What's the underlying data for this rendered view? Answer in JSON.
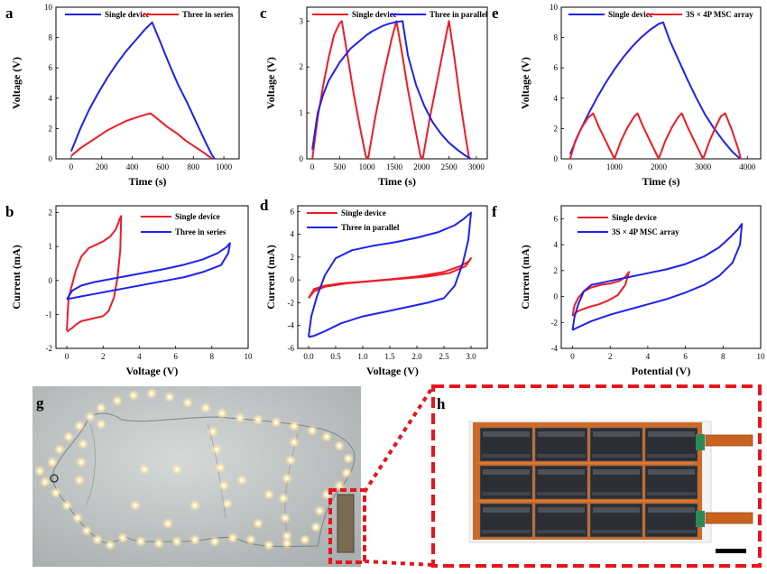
{
  "panel_labels": {
    "a": "a",
    "b": "b",
    "c": "c",
    "d": "d",
    "e": "e",
    "f": "f",
    "g": "g",
    "h": "h"
  },
  "colors": {
    "red": "#ee1c25",
    "blue": "#1e22ee",
    "dashed_box": "#e8141c",
    "grey_bg": "#b8bcbe",
    "device_orange": "#d2691e"
  },
  "chart_data": [
    {
      "id": "a",
      "type": "line",
      "xlabel": "Time (s)",
      "ylabel": "Voltage (V)",
      "xlim": [
        -100,
        1100
      ],
      "ylim": [
        0,
        10
      ],
      "xticks": [
        0,
        200,
        400,
        600,
        800,
        1000
      ],
      "yticks": [
        0,
        2,
        4,
        6,
        8,
        10
      ],
      "legend": "top",
      "series": [
        {
          "name": "Single device",
          "color": "#1e22ee",
          "x": [
            0,
            60,
            120,
            180,
            240,
            300,
            360,
            420,
            480,
            530,
            580,
            640,
            700,
            760,
            820,
            880,
            920,
            940
          ],
          "y": [
            0.5,
            2.0,
            3.3,
            4.4,
            5.4,
            6.3,
            7.1,
            7.8,
            8.5,
            9.0,
            7.8,
            6.3,
            4.9,
            3.7,
            2.4,
            1.1,
            0.3,
            0.0
          ]
        },
        {
          "name": "Three in series",
          "color": "#ee1c25",
          "x": [
            0,
            60,
            120,
            180,
            240,
            300,
            360,
            420,
            480,
            520,
            570,
            630,
            690,
            750,
            810,
            870,
            910,
            925
          ],
          "y": [
            0.2,
            0.7,
            1.1,
            1.5,
            1.9,
            2.2,
            2.5,
            2.7,
            2.9,
            3.0,
            2.6,
            2.1,
            1.7,
            1.2,
            0.8,
            0.4,
            0.1,
            0.0
          ]
        }
      ]
    },
    {
      "id": "c",
      "type": "line",
      "xlabel": "Time (s)",
      "ylabel": "Voltage (V)",
      "xlim": [
        -100,
        3200
      ],
      "ylim": [
        0,
        3.3
      ],
      "xticks": [
        0,
        500,
        1000,
        1500,
        2000,
        2500,
        3000
      ],
      "yticks": [
        0,
        1,
        2,
        3
      ],
      "legend": "top",
      "series": [
        {
          "name": "Single device",
          "color": "#ee1c25",
          "x": [
            0,
            100,
            200,
            300,
            400,
            500,
            540,
            650,
            760,
            870,
            980,
            1020,
            1150,
            1300,
            1450,
            1540,
            1640,
            1750,
            1860,
            1980,
            2020,
            2150,
            2300,
            2450,
            2500,
            2600,
            2700,
            2800,
            2870
          ],
          "y": [
            0.0,
            0.9,
            1.6,
            2.2,
            2.7,
            2.95,
            3.0,
            2.2,
            1.4,
            0.7,
            0.05,
            0.0,
            0.9,
            1.8,
            2.6,
            3.0,
            2.3,
            1.5,
            0.8,
            0.05,
            0.0,
            0.9,
            1.8,
            2.7,
            3.0,
            2.2,
            1.3,
            0.5,
            0.0
          ]
        },
        {
          "name": "Three in parallel",
          "color": "#1e22ee",
          "x": [
            0,
            100,
            200,
            300,
            400,
            500,
            600,
            700,
            800,
            900,
            1000,
            1100,
            1200,
            1300,
            1400,
            1500,
            1600,
            1650,
            1750,
            1900,
            2050,
            2200,
            2350,
            2500,
            2650,
            2800,
            2900
          ],
          "y": [
            0.2,
            1.0,
            1.4,
            1.7,
            1.9,
            2.1,
            2.25,
            2.4,
            2.5,
            2.6,
            2.7,
            2.78,
            2.84,
            2.9,
            2.94,
            2.97,
            2.99,
            3.0,
            2.25,
            1.6,
            1.15,
            0.8,
            0.55,
            0.35,
            0.2,
            0.07,
            0.0
          ]
        }
      ]
    },
    {
      "id": "e",
      "type": "line",
      "xlabel": "Time (s)",
      "ylabel": "Voltage (V)",
      "xlim": [
        -200,
        4300
      ],
      "ylim": [
        0,
        10
      ],
      "xticks": [
        0,
        1000,
        2000,
        3000,
        4000
      ],
      "yticks": [
        0,
        2,
        4,
        6,
        8,
        10
      ],
      "legend": "top",
      "series": [
        {
          "name": "Single device",
          "color": "#1e22ee",
          "x": [
            0,
            200,
            400,
            600,
            800,
            1000,
            1200,
            1400,
            1600,
            1800,
            2000,
            2100,
            2250,
            2450,
            2650,
            2850,
            3050,
            3250,
            3450,
            3650,
            3800,
            3850
          ],
          "y": [
            0.3,
            1.7,
            2.9,
            4.0,
            5.0,
            5.9,
            6.7,
            7.4,
            8.0,
            8.5,
            8.9,
            9.0,
            7.8,
            6.5,
            5.2,
            4.0,
            2.9,
            2.0,
            1.2,
            0.5,
            0.1,
            0.0
          ]
        },
        {
          "name": "3S × 4P MSC array",
          "color": "#ee1c25",
          "x": [
            0,
            120,
            250,
            400,
            520,
            650,
            800,
            950,
            1000,
            1150,
            1300,
            1450,
            1520,
            1650,
            1800,
            1950,
            2000,
            2150,
            2300,
            2450,
            2520,
            2650,
            2800,
            2950,
            3000,
            3150,
            3300,
            3400,
            3500,
            3650,
            3800,
            3850
          ],
          "y": [
            0.0,
            1.2,
            2.0,
            2.7,
            3.0,
            2.1,
            1.2,
            0.3,
            0.0,
            1.2,
            2.1,
            2.8,
            3.0,
            2.1,
            1.2,
            0.3,
            0.0,
            1.2,
            2.1,
            2.8,
            3.0,
            2.1,
            1.2,
            0.3,
            0.0,
            1.2,
            2.2,
            2.8,
            3.0,
            1.9,
            0.6,
            0.0
          ]
        }
      ]
    },
    {
      "id": "b",
      "type": "line",
      "xlabel": "Voltage (V)",
      "ylabel": "Current (mA)",
      "xlim": [
        -0.6,
        10
      ],
      "ylim": [
        -2,
        2.2
      ],
      "xticks": [
        0,
        2,
        4,
        6,
        8,
        10
      ],
      "yticks": [
        -2,
        -1,
        0,
        1,
        2
      ],
      "legend": "top-right",
      "series": [
        {
          "name": "Single device",
          "color": "#ee1c25",
          "x": [
            0.1,
            0.3,
            0.5,
            0.8,
            1.2,
            1.6,
            2.0,
            2.4,
            2.7,
            2.85,
            2.92,
            3.0,
            2.95,
            2.8,
            2.6,
            2.3,
            2.0,
            1.6,
            1.2,
            0.8,
            0.5,
            0.3,
            0.15,
            0.05,
            0.0,
            0.05,
            0.1
          ],
          "y": [
            -0.5,
            -0.1,
            0.3,
            0.7,
            0.95,
            1.05,
            1.15,
            1.3,
            1.5,
            1.7,
            1.82,
            1.9,
            0.9,
            0.1,
            -0.5,
            -0.9,
            -1.05,
            -1.1,
            -1.15,
            -1.2,
            -1.3,
            -1.4,
            -1.45,
            -1.5,
            -1.45,
            -0.9,
            -0.5
          ]
        },
        {
          "name": "Three in series",
          "color": "#1e22ee",
          "x": [
            0.0,
            0.3,
            0.8,
            1.5,
            2.5,
            3.5,
            4.5,
            5.5,
            6.5,
            7.5,
            8.3,
            8.8,
            9.0,
            8.9,
            8.5,
            7.5,
            6.5,
            5.5,
            4.5,
            3.5,
            2.5,
            1.5,
            0.8,
            0.3,
            0.0
          ],
          "y": [
            -0.55,
            -0.3,
            -0.15,
            -0.05,
            0.05,
            0.15,
            0.25,
            0.35,
            0.47,
            0.62,
            0.8,
            0.98,
            1.1,
            0.8,
            0.45,
            0.25,
            0.1,
            0.0,
            -0.1,
            -0.2,
            -0.3,
            -0.4,
            -0.47,
            -0.52,
            -0.55
          ]
        }
      ]
    },
    {
      "id": "d",
      "type": "line",
      "xlabel": "Voltage (V)",
      "ylabel": "Current (mA)",
      "xlim": [
        -0.2,
        3.3
      ],
      "ylim": [
        -6,
        6.5
      ],
      "xticks": [
        0.0,
        0.5,
        1.0,
        1.5,
        2.0,
        2.5,
        3.0
      ],
      "yticks": [
        -6,
        -4,
        -2,
        0,
        2,
        4,
        6
      ],
      "legend": "top-left",
      "series": [
        {
          "name": "Single device",
          "color": "#ee1c25",
          "x": [
            0.0,
            0.1,
            0.3,
            0.6,
            1.0,
            1.5,
            2.0,
            2.5,
            2.8,
            2.95,
            3.0,
            2.9,
            2.6,
            2.2,
            1.7,
            1.2,
            0.7,
            0.3,
            0.1,
            0.0
          ],
          "y": [
            -1.6,
            -0.8,
            -0.5,
            -0.3,
            -0.15,
            0.05,
            0.3,
            0.7,
            1.2,
            1.6,
            1.9,
            1.2,
            0.6,
            0.3,
            0.1,
            -0.1,
            -0.3,
            -0.6,
            -1.0,
            -1.6
          ]
        },
        {
          "name": "Three in parallel",
          "color": "#1e22ee",
          "x": [
            0.0,
            0.05,
            0.15,
            0.3,
            0.5,
            0.8,
            1.2,
            1.6,
            2.0,
            2.4,
            2.7,
            2.85,
            2.95,
            3.0,
            2.95,
            2.85,
            2.7,
            2.5,
            2.2,
            1.8,
            1.4,
            1.0,
            0.6,
            0.3,
            0.1,
            0.0
          ],
          "y": [
            -5.0,
            -3.2,
            -1.5,
            0.4,
            1.9,
            2.6,
            3.0,
            3.3,
            3.7,
            4.2,
            4.8,
            5.3,
            5.7,
            5.9,
            3.5,
            1.5,
            -0.5,
            -1.6,
            -2.0,
            -2.4,
            -2.8,
            -3.2,
            -3.8,
            -4.5,
            -4.9,
            -5.0
          ]
        }
      ]
    },
    {
      "id": "f",
      "type": "line",
      "xlabel": "Potential (V)",
      "ylabel": "Current (mA)",
      "xlim": [
        -0.6,
        10
      ],
      "ylim": [
        -4,
        7
      ],
      "xticks": [
        0,
        2,
        4,
        6,
        8,
        10
      ],
      "yticks": [
        -4,
        -2,
        0,
        2,
        4,
        6
      ],
      "legend": "top-left",
      "series": [
        {
          "name": "Single device",
          "color": "#ee1c25",
          "x": [
            0.0,
            0.1,
            0.3,
            0.6,
            1.0,
            1.5,
            2.0,
            2.5,
            2.8,
            2.95,
            3.0,
            2.8,
            2.4,
            1.9,
            1.4,
            0.9,
            0.5,
            0.2,
            0.05,
            0.0
          ],
          "y": [
            -1.5,
            -0.7,
            -0.1,
            0.4,
            0.7,
            0.9,
            1.0,
            1.2,
            1.5,
            1.8,
            1.9,
            0.9,
            0.1,
            -0.3,
            -0.6,
            -0.8,
            -1.0,
            -1.2,
            -1.4,
            -1.5
          ]
        },
        {
          "name": "3S × 4P MSC array",
          "color": "#1e22ee",
          "x": [
            0.0,
            0.1,
            0.3,
            0.6,
            1.0,
            2.0,
            3.0,
            4.0,
            5.0,
            6.0,
            7.0,
            7.8,
            8.4,
            8.8,
            9.0,
            8.9,
            8.5,
            7.8,
            7.0,
            6.0,
            5.0,
            4.0,
            3.0,
            2.0,
            1.0,
            0.4,
            0.1,
            0.0
          ],
          "y": [
            -2.6,
            -1.6,
            -0.6,
            0.4,
            0.9,
            1.2,
            1.5,
            1.8,
            2.1,
            2.5,
            3.1,
            3.8,
            4.6,
            5.2,
            5.6,
            4.0,
            2.6,
            1.6,
            0.9,
            0.3,
            -0.2,
            -0.6,
            -1.0,
            -1.4,
            -1.9,
            -2.3,
            -2.5,
            -2.6
          ]
        }
      ]
    }
  ]
}
